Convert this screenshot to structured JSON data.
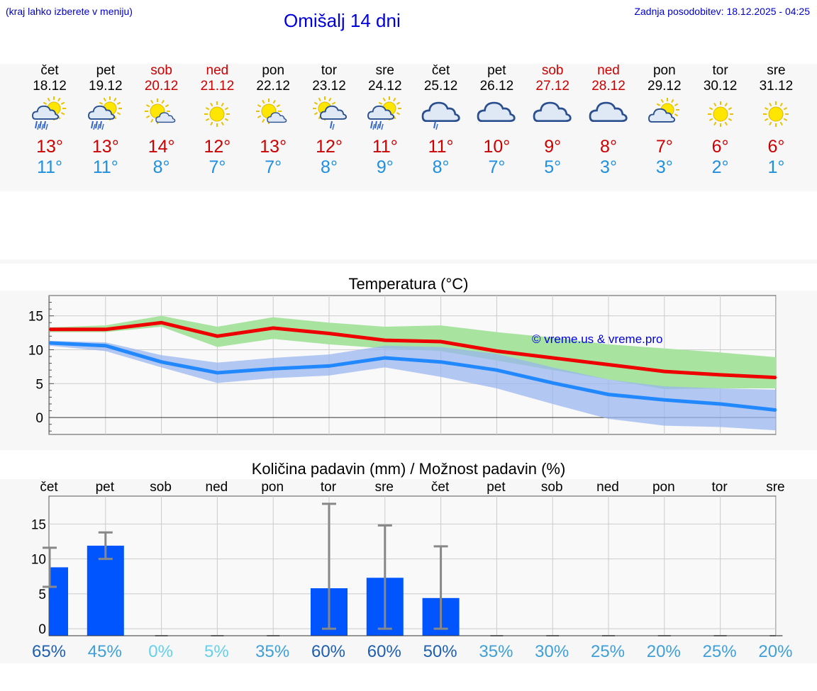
{
  "header": {
    "hint": "(kraj lahko izberete v meniju)",
    "title": "Omišalj 14 dni",
    "updated": "Zadnja posodobitev: 18.12.2025 - 04:25"
  },
  "days": [
    {
      "name": "čet",
      "date": "18.12",
      "weekend": false,
      "icon": "sun-cloud-rain-icon",
      "tmax": "13°",
      "tmin": "11°"
    },
    {
      "name": "pet",
      "date": "19.12",
      "weekend": false,
      "icon": "sun-cloud-rain-icon",
      "tmax": "13°",
      "tmin": "11°"
    },
    {
      "name": "sob",
      "date": "20.12",
      "weekend": true,
      "icon": "sun-small-cloud-icon",
      "tmax": "14°",
      "tmin": "8°"
    },
    {
      "name": "ned",
      "date": "21.12",
      "weekend": true,
      "icon": "sun-icon",
      "tmax": "12°",
      "tmin": "7°"
    },
    {
      "name": "pon",
      "date": "22.12",
      "weekend": false,
      "icon": "sun-small-cloud-icon",
      "tmax": "13°",
      "tmin": "7°"
    },
    {
      "name": "tor",
      "date": "23.12",
      "weekend": false,
      "icon": "sun-cloud-drizzle-icon",
      "tmax": "12°",
      "tmin": "8°"
    },
    {
      "name": "sre",
      "date": "24.12",
      "weekend": false,
      "icon": "sun-cloud-rain-icon",
      "tmax": "11°",
      "tmin": "9°"
    },
    {
      "name": "čet",
      "date": "25.12",
      "weekend": false,
      "icon": "cloud-drizzle-icon",
      "tmax": "11°",
      "tmin": "8°"
    },
    {
      "name": "pet",
      "date": "26.12",
      "weekend": false,
      "icon": "cloud-icon",
      "tmax": "10°",
      "tmin": "7°"
    },
    {
      "name": "sob",
      "date": "27.12",
      "weekend": true,
      "icon": "cloud-icon",
      "tmax": "9°",
      "tmin": "5°"
    },
    {
      "name": "ned",
      "date": "28.12",
      "weekend": true,
      "icon": "cloud-icon",
      "tmax": "8°",
      "tmin": "3°"
    },
    {
      "name": "pon",
      "date": "29.12",
      "weekend": false,
      "icon": "sun-cloud-icon",
      "tmax": "7°",
      "tmin": "3°"
    },
    {
      "name": "tor",
      "date": "30.12",
      "weekend": false,
      "icon": "sun-icon",
      "tmax": "6°",
      "tmin": "2°"
    },
    {
      "name": "sre",
      "date": "31.12",
      "weekend": false,
      "icon": "sun-icon",
      "tmax": "6°",
      "tmin": "1°"
    }
  ],
  "colors": {
    "max_line": "#ee0000",
    "min_line": "#2288ff",
    "max_band": "#a8e4a0",
    "min_band": "#9ab6ef",
    "bar": "#0055ff",
    "errbar": "#888888",
    "copyright": "#0000dd"
  },
  "chart_data": [
    {
      "type": "line",
      "title": "Temperatura (°C)",
      "copyright": "© vreme.us & vreme.pro",
      "xlabel": "",
      "ylabel": "",
      "ylim": [
        -2.5,
        18
      ],
      "yticks": [
        "15",
        "10",
        "5",
        "0"
      ],
      "ytick_values": [
        15,
        10,
        5,
        0
      ],
      "series": [
        {
          "name": "max",
          "values": [
            13,
            13,
            14,
            12,
            13.2,
            12.4,
            11.4,
            11.2,
            9.8,
            8.8,
            7.8,
            6.8,
            6.3,
            5.9
          ],
          "band_high": [
            13.3,
            13.6,
            15.0,
            13.4,
            14.8,
            14.0,
            13.4,
            13.6,
            12.6,
            11.8,
            10.8,
            10.2,
            9.6,
            8.9
          ],
          "band_low": [
            12.6,
            12.6,
            13.4,
            10.4,
            11.6,
            10.8,
            10.2,
            9.8,
            8.4,
            7.0,
            5.6,
            4.2,
            4.3,
            4.3
          ]
        },
        {
          "name": "min",
          "values": [
            11,
            10.6,
            8.2,
            6.6,
            7.2,
            7.6,
            8.8,
            8.2,
            7.0,
            5.1,
            3.4,
            2.6,
            2.0,
            1.1
          ],
          "band_high": [
            11.3,
            11.1,
            9.2,
            8.1,
            8.8,
            9.3,
            10.6,
            10.4,
            9.4,
            7.4,
            5.6,
            4.6,
            4.3,
            4.1
          ],
          "band_low": [
            10.6,
            9.8,
            7.4,
            5.1,
            5.8,
            6.2,
            7.4,
            6.0,
            4.3,
            2.0,
            -0.2,
            -1.2,
            -1.4,
            -1.9
          ]
        }
      ]
    },
    {
      "type": "bar",
      "title": "Količina padavin (mm) / Možnost padavin (%)",
      "categories": [
        "čet",
        "pet",
        "sob",
        "ned",
        "pon",
        "tor",
        "sre",
        "čet",
        "pet",
        "sob",
        "ned",
        "pon",
        "tor",
        "sre"
      ],
      "values": [
        8.8,
        11.9,
        0,
        0,
        0,
        5.8,
        7.3,
        4.4,
        0,
        0,
        0,
        0,
        0,
        0
      ],
      "err_low": [
        6.0,
        10.0,
        0,
        0,
        0,
        0,
        0,
        0,
        0,
        0,
        0,
        0,
        0,
        0
      ],
      "err_high": [
        11.6,
        13.8,
        0,
        0,
        0,
        17.9,
        14.8,
        11.8,
        0,
        0,
        0,
        0,
        0,
        0
      ],
      "probability": [
        "65%",
        "45%",
        "0%",
        "5%",
        "35%",
        "60%",
        "60%",
        "50%",
        "35%",
        "30%",
        "25%",
        "20%",
        "25%",
        "20%"
      ],
      "probability_values": [
        65,
        45,
        0,
        5,
        35,
        60,
        60,
        50,
        35,
        30,
        25,
        20,
        25,
        20
      ],
      "ylim": [
        -1,
        19
      ],
      "yticks": [
        "15",
        "10",
        "5",
        "0"
      ],
      "ytick_values": [
        15,
        10,
        5,
        0
      ]
    }
  ]
}
